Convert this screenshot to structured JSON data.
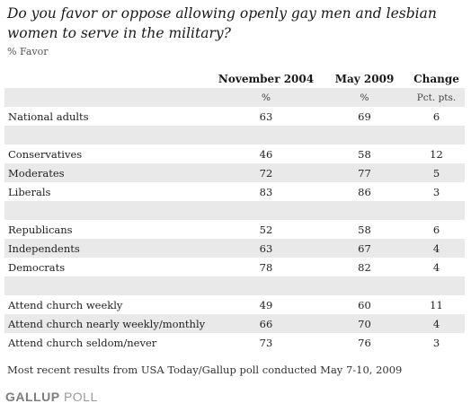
{
  "title": "Do you favor or oppose allowing openly gay men and lesbian women to serve in the military?",
  "subtitle": "% Favor",
  "chart_data": {
    "type": "table",
    "columns": [
      {
        "header": "November 2004",
        "unit": "%"
      },
      {
        "header": "May 2009",
        "unit": "%"
      },
      {
        "header": "Change",
        "unit": "Pct. pts."
      }
    ],
    "rows": [
      {
        "label": "National adults",
        "values": [
          "63",
          "69",
          "6"
        ],
        "shaded": false
      },
      {
        "spacer": true,
        "shaded": true
      },
      {
        "label": "Conservatives",
        "values": [
          "46",
          "58",
          "12"
        ],
        "shaded": false
      },
      {
        "label": "Moderates",
        "values": [
          "72",
          "77",
          "5"
        ],
        "shaded": true
      },
      {
        "label": "Liberals",
        "values": [
          "83",
          "86",
          "3"
        ],
        "shaded": false
      },
      {
        "spacer": true,
        "shaded": true
      },
      {
        "label": "Republicans",
        "values": [
          "52",
          "58",
          "6"
        ],
        "shaded": false
      },
      {
        "label": "Independents",
        "values": [
          "63",
          "67",
          "4"
        ],
        "shaded": true
      },
      {
        "label": "Democrats",
        "values": [
          "78",
          "82",
          "4"
        ],
        "shaded": false
      },
      {
        "spacer": true,
        "shaded": true
      },
      {
        "label": "Attend church weekly",
        "values": [
          "49",
          "60",
          "11"
        ],
        "shaded": false
      },
      {
        "label": "Attend church nearly weekly/monthly",
        "values": [
          "66",
          "70",
          "4"
        ],
        "shaded": true
      },
      {
        "label": "Attend church seldom/never",
        "values": [
          "73",
          "76",
          "3"
        ],
        "shaded": false
      }
    ],
    "series": [
      {
        "name": "November 2004",
        "values": [
          63,
          46,
          72,
          83,
          52,
          63,
          78,
          49,
          66,
          73
        ]
      },
      {
        "name": "May 2009",
        "values": [
          69,
          58,
          77,
          86,
          58,
          67,
          82,
          60,
          70,
          76
        ]
      },
      {
        "name": "Change",
        "values": [
          6,
          12,
          5,
          3,
          6,
          4,
          4,
          11,
          4,
          3
        ]
      }
    ],
    "categories": [
      "National adults",
      "Conservatives",
      "Moderates",
      "Liberals",
      "Republicans",
      "Independents",
      "Democrats",
      "Attend church weekly",
      "Attend church nearly weekly/monthly",
      "Attend church seldom/never"
    ]
  },
  "footnote": "Most recent results from USA Today/Gallup poll conducted May 7-10, 2009",
  "brand": {
    "strong": "GALLUP",
    "light": "POLL"
  },
  "colors": {
    "shade": "#e9e9e9",
    "brand": "#8a8a8a"
  }
}
